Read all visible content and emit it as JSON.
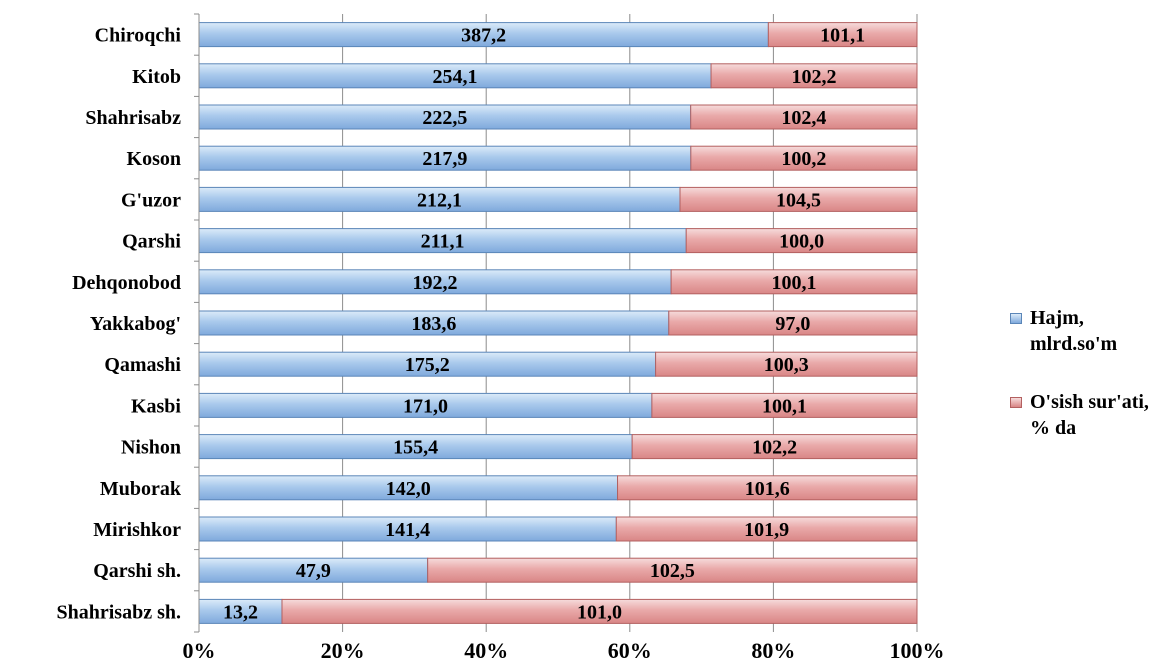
{
  "chart_data": {
    "type": "bar",
    "orientation": "horizontal",
    "stacking": "percent",
    "categories": [
      "Chiroqchi",
      "Kitob",
      "Shahrisabz",
      "Koson",
      "G'uzor",
      "Qarshi",
      "Dehqonobod",
      "Yakkabog'",
      "Qamashi",
      "Kasbi",
      "Nishon",
      "Muborak",
      "Mirishkor",
      "Qarshi sh.",
      "Shahrisabz sh."
    ],
    "series": [
      {
        "name": "Hajm,\nmlrd.so'm",
        "color": "#9dc3e6",
        "values": [
          387.2,
          254.1,
          222.5,
          217.9,
          212.1,
          211.1,
          192.2,
          183.6,
          175.2,
          171.0,
          155.4,
          142.0,
          141.4,
          47.9,
          13.2
        ],
        "labels": [
          "387,2",
          "254,1",
          "222,5",
          "217,9",
          "212,1",
          "211,1",
          "192,2",
          "183,6",
          "175,2",
          "171,0",
          "155,4",
          "142,0",
          "141,4",
          "47,9",
          "13,2"
        ]
      },
      {
        "name": "O'sish sur'ati,\n% da",
        "color": "#e6a6a6",
        "values": [
          101.1,
          102.2,
          102.4,
          100.2,
          104.5,
          100.0,
          100.1,
          97.0,
          100.3,
          100.1,
          102.2,
          101.6,
          101.9,
          102.5,
          101.0
        ],
        "labels": [
          "101,1",
          "102,2",
          "102,4",
          "100,2",
          "104,5",
          "100,0",
          "100,1",
          "97,0",
          "100,3",
          "100,1",
          "102,2",
          "101,6",
          "101,9",
          "102,5",
          "101,0"
        ]
      }
    ],
    "xticks": [
      "0%",
      "20%",
      "40%",
      "60%",
      "80%",
      "100%"
    ],
    "xlim": [
      0,
      100
    ],
    "grid": "vertical",
    "legend": "right",
    "title": "",
    "xlabel": "",
    "ylabel": ""
  },
  "legend": {
    "series0": "Hajm,\nmlrd.so'm",
    "series1": "O'sish sur'ati,\n% da"
  }
}
